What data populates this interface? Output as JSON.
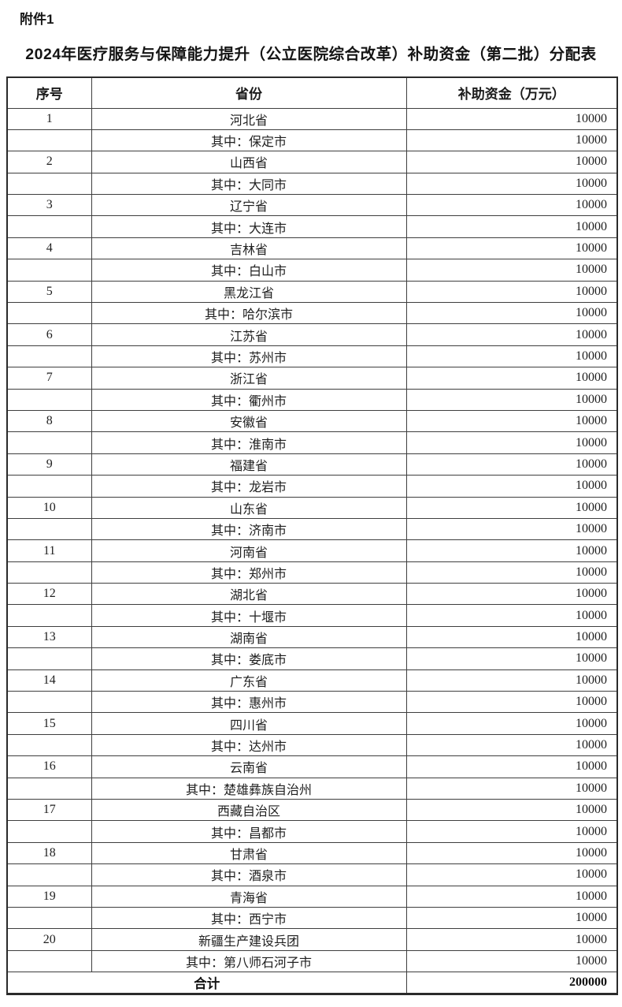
{
  "attachment_label": "附件1",
  "title": "2024年医疗服务与保障能力提升（公立医院综合改革）补助资金（第二批）分配表",
  "table": {
    "headers": [
      "序号",
      "省份",
      "补助资金（万元）"
    ],
    "rows": [
      {
        "no": "1",
        "region": "河北省",
        "amount": "10000"
      },
      {
        "no": "",
        "region": "其中：保定市",
        "amount": "10000"
      },
      {
        "no": "2",
        "region": "山西省",
        "amount": "10000"
      },
      {
        "no": "",
        "region": "其中：大同市",
        "amount": "10000"
      },
      {
        "no": "3",
        "region": "辽宁省",
        "amount": "10000"
      },
      {
        "no": "",
        "region": "其中：大连市",
        "amount": "10000"
      },
      {
        "no": "4",
        "region": "吉林省",
        "amount": "10000"
      },
      {
        "no": "",
        "region": "其中：白山市",
        "amount": "10000"
      },
      {
        "no": "5",
        "region": "黑龙江省",
        "amount": "10000"
      },
      {
        "no": "",
        "region": "其中：哈尔滨市",
        "amount": "10000"
      },
      {
        "no": "6",
        "region": "江苏省",
        "amount": "10000"
      },
      {
        "no": "",
        "region": "其中：苏州市",
        "amount": "10000"
      },
      {
        "no": "7",
        "region": "浙江省",
        "amount": "10000"
      },
      {
        "no": "",
        "region": "其中：衢州市",
        "amount": "10000"
      },
      {
        "no": "8",
        "region": "安徽省",
        "amount": "10000"
      },
      {
        "no": "",
        "region": "其中：淮南市",
        "amount": "10000"
      },
      {
        "no": "9",
        "region": "福建省",
        "amount": "10000"
      },
      {
        "no": "",
        "region": "其中：龙岩市",
        "amount": "10000"
      },
      {
        "no": "10",
        "region": "山东省",
        "amount": "10000"
      },
      {
        "no": "",
        "region": "其中：济南市",
        "amount": "10000"
      },
      {
        "no": "11",
        "region": "河南省",
        "amount": "10000"
      },
      {
        "no": "",
        "region": "其中：郑州市",
        "amount": "10000"
      },
      {
        "no": "12",
        "region": "湖北省",
        "amount": "10000"
      },
      {
        "no": "",
        "region": "其中：十堰市",
        "amount": "10000"
      },
      {
        "no": "13",
        "region": "湖南省",
        "amount": "10000"
      },
      {
        "no": "",
        "region": "其中：娄底市",
        "amount": "10000"
      },
      {
        "no": "14",
        "region": "广东省",
        "amount": "10000"
      },
      {
        "no": "",
        "region": "其中：惠州市",
        "amount": "10000"
      },
      {
        "no": "15",
        "region": "四川省",
        "amount": "10000"
      },
      {
        "no": "",
        "region": "其中：达州市",
        "amount": "10000"
      },
      {
        "no": "16",
        "region": "云南省",
        "amount": "10000"
      },
      {
        "no": "",
        "region": "其中：楚雄彝族自治州",
        "amount": "10000"
      },
      {
        "no": "17",
        "region": "西藏自治区",
        "amount": "10000"
      },
      {
        "no": "",
        "region": "其中：昌都市",
        "amount": "10000"
      },
      {
        "no": "18",
        "region": "甘肃省",
        "amount": "10000"
      },
      {
        "no": "",
        "region": "其中：酒泉市",
        "amount": "10000"
      },
      {
        "no": "19",
        "region": "青海省",
        "amount": "10000"
      },
      {
        "no": "",
        "region": "其中：西宁市",
        "amount": "10000"
      },
      {
        "no": "20",
        "region": "新疆生产建设兵团",
        "amount": "10000"
      },
      {
        "no": "",
        "region": "其中：第八师石河子市",
        "amount": "10000"
      }
    ],
    "total": {
      "label": "合计",
      "amount": "200000"
    }
  }
}
